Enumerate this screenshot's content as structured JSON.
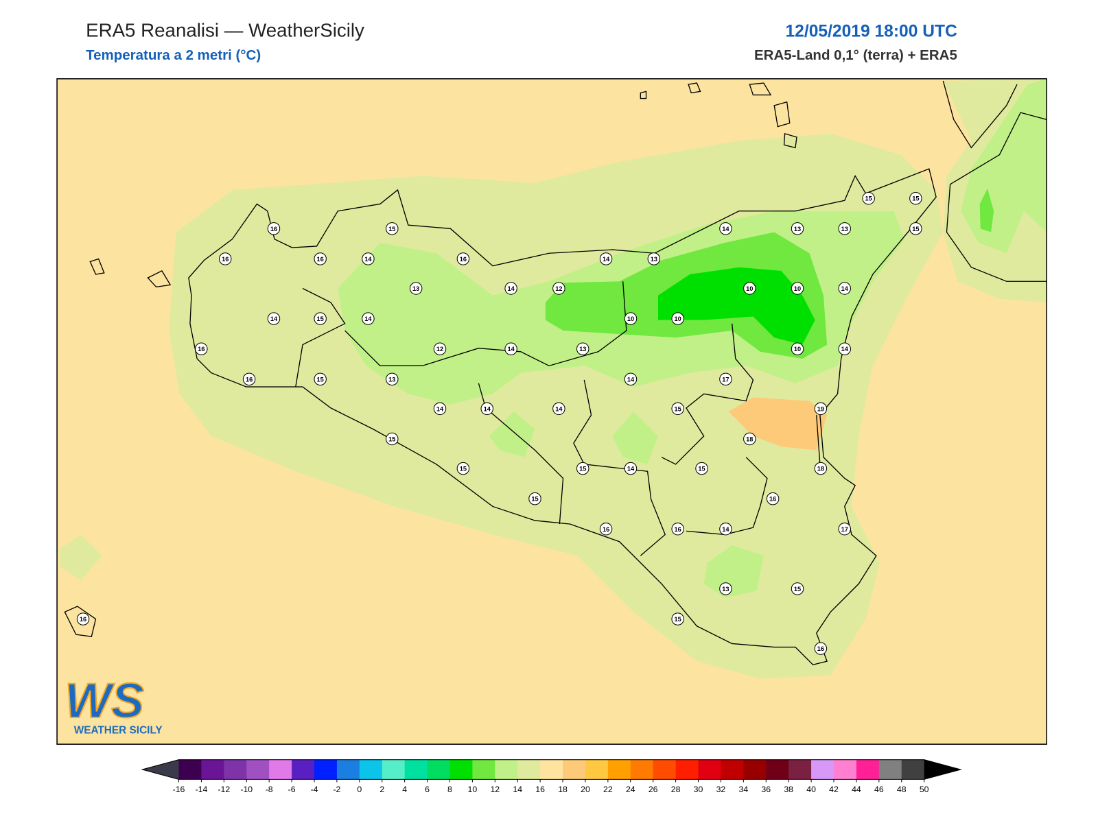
{
  "header": {
    "title": "ERA5 Reanalisi — WeatherSicily",
    "subtitle": "Temperatura a 2 metri (°C)",
    "date": "12/05/2019 18:00 UTC",
    "source": "ERA5-Land 0,1° (terra) + ERA5"
  },
  "logo": {
    "initials": "WS",
    "name": "WEATHER SICILY"
  },
  "stations": [
    16,
    15,
    16,
    16,
    14,
    16,
    14,
    13,
    14,
    13,
    13,
    15,
    15,
    15,
    13,
    14,
    12,
    10,
    10,
    14,
    14,
    15,
    14,
    10,
    10,
    16,
    12,
    14,
    13,
    10,
    14,
    16,
    15,
    13,
    14,
    17,
    14,
    14,
    14,
    15,
    19,
    15,
    18,
    15,
    15,
    14,
    15,
    18,
    16,
    15,
    16,
    16,
    14,
    17,
    13,
    15,
    15,
    16,
    16
  ],
  "colorbar": {
    "ticks": [
      -16,
      -14,
      -12,
      -10,
      -8,
      -6,
      -4,
      -2,
      0,
      2,
      4,
      6,
      8,
      10,
      12,
      14,
      16,
      18,
      20,
      22,
      24,
      26,
      28,
      30,
      32,
      34,
      36,
      38,
      40,
      42,
      44,
      46,
      48,
      50
    ],
    "colors": [
      "#3a3a4a",
      "#3d0050",
      "#6a1596",
      "#7f33a8",
      "#a050c0",
      "#e07ae8",
      "#5a1fc0",
      "#0020ff",
      "#1a7fe0",
      "#0cc3e8",
      "#55eec8",
      "#00e0a0",
      "#00dd60",
      "#00e000",
      "#70e840",
      "#c2f088",
      "#e0ea9e",
      "#ffe4a0",
      "#fcca78",
      "#ffc840",
      "#ffa000",
      "#ff7a00",
      "#ff4c00",
      "#ff1e00",
      "#e00010",
      "#c00000",
      "#980000",
      "#700018",
      "#7a2040",
      "#d898f8",
      "#ff80d0",
      "#ff2098",
      "#808080",
      "#404040",
      "#000000"
    ]
  }
}
